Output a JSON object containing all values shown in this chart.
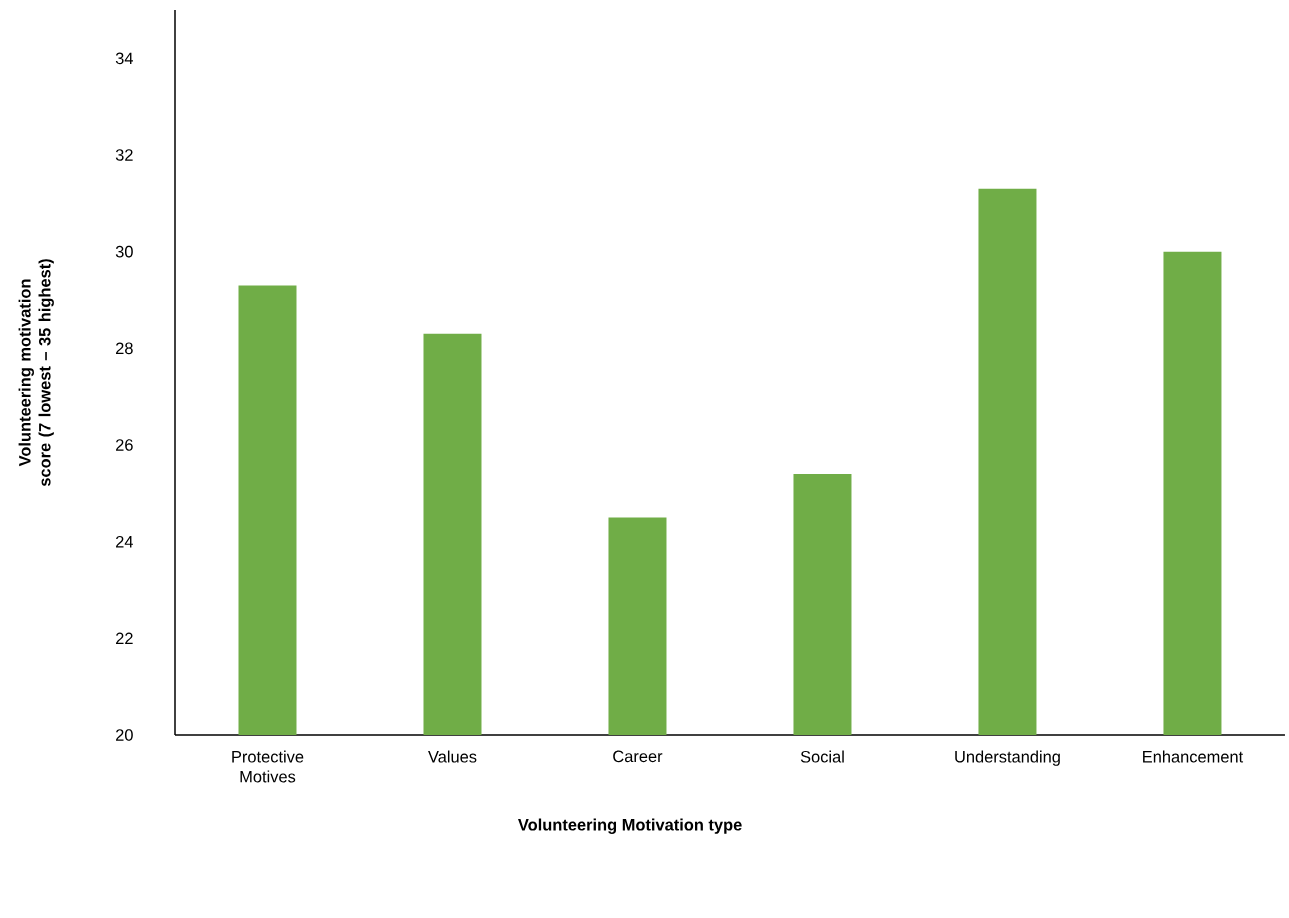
{
  "chart_data": {
    "type": "bar",
    "xlabel": "Volunteering Motivation type",
    "ylabel": "Volunteering motivation score (7 lowest – 35 highest)",
    "categories": [
      "Protective Motives",
      "Values",
      "Career",
      "Social",
      "Understanding",
      "Enhancement"
    ],
    "values": [
      29.3,
      28.3,
      24.5,
      25.4,
      31.3,
      30.0
    ],
    "color": "#70ad47",
    "ylim": [
      20,
      35
    ],
    "yticks": [
      20,
      22,
      24,
      26,
      28,
      30,
      32,
      34
    ],
    "grid": false
  }
}
